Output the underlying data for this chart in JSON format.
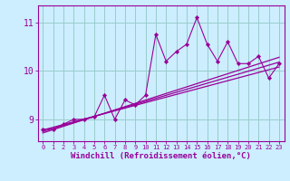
{
  "xlabel": "Windchill (Refroidissement éolien,°C)",
  "bg_color": "#cceeff",
  "line_color": "#990099",
  "grid_color": "#99cccc",
  "x_data": [
    0,
    1,
    2,
    3,
    4,
    5,
    6,
    7,
    8,
    9,
    10,
    11,
    12,
    13,
    14,
    15,
    16,
    17,
    18,
    19,
    20,
    21,
    22,
    23
  ],
  "y_data": [
    8.8,
    8.8,
    8.9,
    9.0,
    9.0,
    9.05,
    9.5,
    9.0,
    9.4,
    9.3,
    9.5,
    10.75,
    10.2,
    10.4,
    10.55,
    11.1,
    10.55,
    10.2,
    10.6,
    10.15,
    10.15,
    10.3,
    9.85,
    10.15
  ],
  "trend1_x": [
    0,
    23
  ],
  "trend1_y": [
    8.78,
    10.08
  ],
  "trend2_x": [
    0,
    23
  ],
  "trend2_y": [
    8.75,
    10.18
  ],
  "trend3_x": [
    0,
    23
  ],
  "trend3_y": [
    8.72,
    10.28
  ],
  "ylim": [
    8.55,
    11.35
  ],
  "xlim": [
    -0.5,
    23.5
  ],
  "yticks": [
    9,
    10,
    11
  ],
  "xticks": [
    0,
    1,
    2,
    3,
    4,
    5,
    6,
    7,
    8,
    9,
    10,
    11,
    12,
    13,
    14,
    15,
    16,
    17,
    18,
    19,
    20,
    21,
    22,
    23
  ]
}
